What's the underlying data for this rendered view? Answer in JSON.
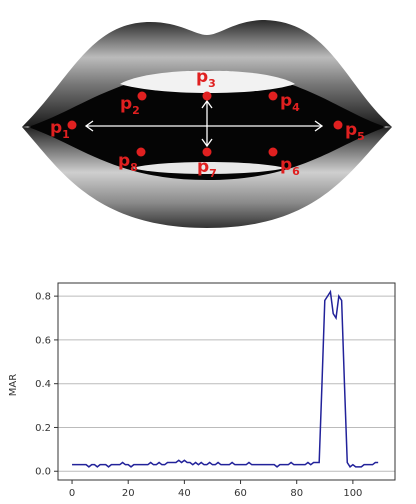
{
  "landmarks": [
    {
      "name": "p",
      "index": "1"
    },
    {
      "name": "p",
      "index": "2"
    },
    {
      "name": "p",
      "index": "3"
    },
    {
      "name": "p",
      "index": "4"
    },
    {
      "name": "p",
      "index": "5"
    },
    {
      "name": "p",
      "index": "6"
    },
    {
      "name": "p",
      "index": "7"
    },
    {
      "name": "p",
      "index": "8"
    }
  ],
  "chart_data": {
    "type": "line",
    "ylabel": "MAR",
    "x": [
      0,
      1,
      2,
      3,
      4,
      5,
      6,
      7,
      8,
      9,
      10,
      11,
      12,
      13,
      14,
      15,
      16,
      17,
      18,
      19,
      20,
      21,
      22,
      23,
      24,
      25,
      26,
      27,
      28,
      29,
      30,
      31,
      32,
      33,
      34,
      35,
      36,
      37,
      38,
      39,
      40,
      41,
      42,
      43,
      44,
      45,
      46,
      47,
      48,
      49,
      50,
      51,
      52,
      53,
      54,
      55,
      56,
      57,
      58,
      59,
      60,
      61,
      62,
      63,
      64,
      65,
      66,
      67,
      68,
      69,
      70,
      71,
      72,
      73,
      74,
      75,
      76,
      77,
      78,
      79,
      80,
      81,
      82,
      83,
      84,
      85,
      86,
      87,
      88,
      89,
      90,
      91,
      92,
      93,
      94,
      95,
      96,
      97,
      98,
      99,
      100,
      101,
      102,
      103,
      104,
      105,
      106,
      107,
      108,
      109
    ],
    "series": [
      {
        "color": "#22229a",
        "values": [
          0.03,
          0.03,
          0.03,
          0.03,
          0.03,
          0.03,
          0.02,
          0.03,
          0.03,
          0.02,
          0.03,
          0.03,
          0.03,
          0.02,
          0.03,
          0.03,
          0.03,
          0.03,
          0.04,
          0.03,
          0.03,
          0.02,
          0.03,
          0.03,
          0.03,
          0.03,
          0.03,
          0.03,
          0.04,
          0.03,
          0.03,
          0.04,
          0.03,
          0.03,
          0.04,
          0.04,
          0.04,
          0.04,
          0.05,
          0.04,
          0.05,
          0.04,
          0.04,
          0.03,
          0.04,
          0.03,
          0.04,
          0.03,
          0.03,
          0.04,
          0.03,
          0.03,
          0.04,
          0.03,
          0.03,
          0.03,
          0.03,
          0.04,
          0.03,
          0.03,
          0.03,
          0.03,
          0.03,
          0.04,
          0.03,
          0.03,
          0.03,
          0.03,
          0.03,
          0.03,
          0.03,
          0.03,
          0.03,
          0.02,
          0.03,
          0.03,
          0.03,
          0.03,
          0.04,
          0.03,
          0.03,
          0.03,
          0.03,
          0.03,
          0.04,
          0.03,
          0.04,
          0.04,
          0.04,
          0.4,
          0.78,
          0.8,
          0.82,
          0.72,
          0.7,
          0.8,
          0.78,
          0.4,
          0.04,
          0.02,
          0.03,
          0.02,
          0.02,
          0.02,
          0.03,
          0.03,
          0.03,
          0.03,
          0.04,
          0.04
        ]
      }
    ],
    "xlim": [
      -5,
      115
    ],
    "xticks": [
      0,
      20,
      40,
      60,
      80,
      100
    ],
    "ylim": [
      -0.04,
      0.86
    ],
    "yticks": [
      {
        "value": 0,
        "label": "0.0"
      },
      0.2,
      0.4,
      0.6,
      0.8
    ],
    "grid": true
  }
}
